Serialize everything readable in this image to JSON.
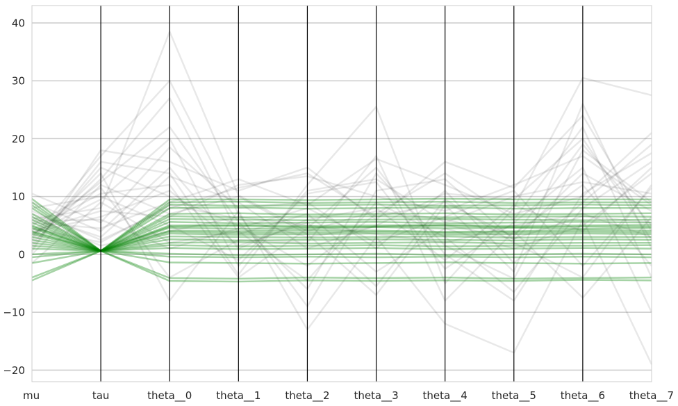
{
  "chart_data": {
    "type": "parallel-coordinates",
    "title": "",
    "xlabel": "",
    "ylabel": "",
    "axes": [
      "mu",
      "tau",
      "theta__0",
      "theta__1",
      "theta__2",
      "theta__3",
      "theta__4",
      "theta__5",
      "theta__6",
      "theta__7"
    ],
    "ylim": [
      -22,
      43
    ],
    "yticks": [
      -20,
      -10,
      0,
      10,
      20,
      30,
      40
    ],
    "grid": true,
    "colors": {
      "background_samples": "#000000",
      "highlighted_samples": "#008000",
      "axis_lines": "#000000",
      "grid": "#cccccc"
    },
    "background_samples": [
      [
        4.5,
        2.1,
        8.5,
        6.2,
        3.0,
        4.8,
        5.1,
        2.7,
        6.6,
        5.5
      ],
      [
        3.2,
        12.5,
        22.0,
        5.6,
        -6.0,
        14.0,
        1.5,
        -4.2,
        18.0,
        9.0
      ],
      [
        6.1,
        8.0,
        38.5,
        10.2,
        4.0,
        7.5,
        6.0,
        3.5,
        12.0,
        -2.0
      ],
      [
        1.0,
        16.0,
        14.0,
        -3.5,
        12.0,
        25.5,
        -5.0,
        8.0,
        30.5,
        27.5
      ],
      [
        5.5,
        4.5,
        9.0,
        13.0,
        8.5,
        16.5,
        12.0,
        7.0,
        10.0,
        21.0
      ],
      [
        2.5,
        14.0,
        -8.0,
        7.5,
        -13.0,
        3.0,
        -12.0,
        -17.0,
        6.0,
        -19.0
      ],
      [
        0.5,
        18.0,
        16.0,
        11.0,
        15.0,
        6.0,
        16.0,
        11.5,
        24.0,
        4.0
      ],
      [
        3.8,
        6.5,
        11.0,
        1.5,
        5.5,
        -5.5,
        9.5,
        2.0,
        -4.0,
        12.0
      ],
      [
        8.0,
        10.0,
        5.0,
        -1.0,
        10.5,
        12.5,
        -2.5,
        5.5,
        15.0,
        -10.0
      ],
      [
        -1.5,
        9.0,
        2.0,
        4.0,
        -4.5,
        9.0,
        3.0,
        -6.5,
        8.0,
        16.0
      ],
      [
        7.0,
        3.0,
        13.5,
        9.0,
        1.0,
        5.0,
        10.5,
        9.5,
        20.0,
        2.5
      ],
      [
        2.0,
        13.0,
        27.0,
        3.5,
        7.0,
        -3.0,
        4.5,
        1.0,
        5.0,
        14.0
      ],
      [
        4.0,
        7.5,
        6.5,
        12.0,
        13.5,
        10.0,
        7.5,
        12.0,
        17.0,
        8.5
      ],
      [
        5.0,
        11.5,
        -4.0,
        2.5,
        2.0,
        17.0,
        -8.0,
        4.0,
        -7.5,
        6.5
      ],
      [
        10.5,
        5.5,
        18.5,
        8.0,
        9.0,
        1.0,
        11.0,
        -1.5,
        9.0,
        19.0
      ],
      [
        1.5,
        15.0,
        10.0,
        5.0,
        -2.0,
        7.0,
        14.0,
        6.0,
        22.0,
        -4.0
      ],
      [
        6.5,
        1.5,
        4.0,
        6.5,
        5.0,
        3.5,
        2.0,
        5.0,
        7.0,
        3.0
      ],
      [
        3.5,
        9.5,
        20.0,
        -2.0,
        11.0,
        13.0,
        5.5,
        10.0,
        12.5,
        10.5
      ],
      [
        0.0,
        12.0,
        7.0,
        10.0,
        3.5,
        -7.0,
        8.5,
        -3.0,
        26.0,
        1.0
      ],
      [
        9.0,
        4.0,
        15.0,
        1.0,
        6.0,
        8.0,
        -1.0,
        8.5,
        4.0,
        15.0
      ],
      [
        2.8,
        17.0,
        30.0,
        7.0,
        -9.0,
        11.0,
        13.0,
        2.5,
        14.0,
        7.5
      ],
      [
        5.8,
        6.0,
        1.0,
        4.5,
        8.0,
        2.0,
        6.5,
        11.0,
        -2.0,
        11.5
      ],
      [
        4.2,
        10.5,
        12.0,
        -4.0,
        4.5,
        15.0,
        0.0,
        -8.0,
        10.5,
        17.5
      ],
      [
        7.5,
        2.5,
        8.0,
        11.5,
        14.0,
        6.5,
        9.0,
        3.0,
        19.0,
        5.0
      ]
    ],
    "highlighted_samples": [
      [
        4.5,
        0.6,
        4.6,
        4.4,
        4.5,
        4.7,
        4.5,
        4.6,
        4.4,
        4.6
      ],
      [
        4.0,
        0.6,
        4.1,
        4.0,
        4.2,
        4.1,
        3.9,
        4.0,
        4.2,
        4.1
      ],
      [
        5.0,
        0.6,
        5.0,
        5.1,
        4.9,
        5.0,
        5.1,
        4.9,
        5.0,
        5.1
      ],
      [
        3.5,
        0.6,
        3.6,
        3.4,
        3.5,
        3.6,
        3.4,
        3.5,
        3.6,
        3.5
      ],
      [
        2.5,
        0.6,
        2.6,
        2.4,
        2.5,
        2.6,
        2.5,
        2.4,
        2.6,
        2.5
      ],
      [
        1.5,
        0.6,
        1.6,
        1.4,
        1.5,
        1.6,
        1.4,
        1.5,
        1.5,
        1.6
      ],
      [
        6.0,
        0.6,
        6.1,
        6.0,
        5.9,
        6.0,
        6.1,
        6.0,
        5.9,
        6.0
      ],
      [
        7.0,
        0.6,
        7.0,
        7.1,
        6.9,
        7.0,
        7.1,
        6.9,
        7.0,
        7.1
      ],
      [
        8.0,
        0.6,
        8.0,
        8.1,
        7.9,
        8.0,
        8.1,
        7.9,
        8.0,
        8.0
      ],
      [
        9.0,
        0.6,
        9.0,
        9.1,
        8.9,
        9.0,
        9.1,
        8.9,
        9.0,
        9.0
      ],
      [
        9.6,
        0.6,
        9.5,
        9.5,
        9.4,
        9.5,
        9.6,
        9.5,
        9.5,
        9.5
      ],
      [
        0.0,
        0.6,
        0.1,
        -0.1,
        0.0,
        0.1,
        -0.1,
        0.0,
        0.1,
        0.0
      ],
      [
        -0.5,
        0.6,
        -0.4,
        -0.5,
        -0.4,
        -0.5,
        -0.4,
        -0.5,
        -0.4,
        -0.5
      ],
      [
        -4.5,
        0.6,
        -4.6,
        -4.7,
        -4.5,
        -4.6,
        -4.5,
        -4.6,
        -4.4,
        -4.5
      ],
      [
        -4.0,
        0.6,
        -4.1,
        -4.2,
        -4.0,
        -4.1,
        -4.0,
        -4.2,
        -4.1,
        -4.0
      ],
      [
        3.0,
        0.6,
        3.1,
        3.0,
        2.9,
        3.0,
        3.1,
        2.9,
        3.0,
        3.0
      ],
      [
        2.0,
        0.6,
        2.0,
        2.1,
        1.9,
        2.0,
        2.1,
        1.9,
        2.0,
        2.0
      ],
      [
        5.5,
        0.6,
        5.6,
        5.4,
        5.5,
        5.6,
        5.4,
        5.5,
        5.6,
        5.5
      ],
      [
        4.8,
        0.6,
        4.8,
        4.9,
        4.7,
        4.8,
        4.9,
        4.7,
        4.8,
        4.8
      ],
      [
        3.8,
        0.6,
        3.9,
        3.7,
        3.8,
        3.9,
        3.7,
        3.8,
        3.9,
        3.8
      ],
      [
        1.0,
        0.6,
        1.1,
        0.9,
        1.0,
        1.1,
        0.9,
        1.0,
        1.1,
        1.0
      ],
      [
        -1.5,
        0.6,
        -1.4,
        -1.5,
        -1.6,
        -1.5,
        -1.4,
        -1.5,
        -1.6,
        -1.5
      ],
      [
        6.5,
        0.6,
        6.6,
        6.4,
        6.5,
        6.6,
        6.4,
        6.5,
        6.6,
        6.5
      ],
      [
        8.5,
        0.6,
        8.6,
        8.4,
        8.5,
        8.6,
        8.4,
        8.5,
        8.6,
        8.5
      ]
    ]
  }
}
